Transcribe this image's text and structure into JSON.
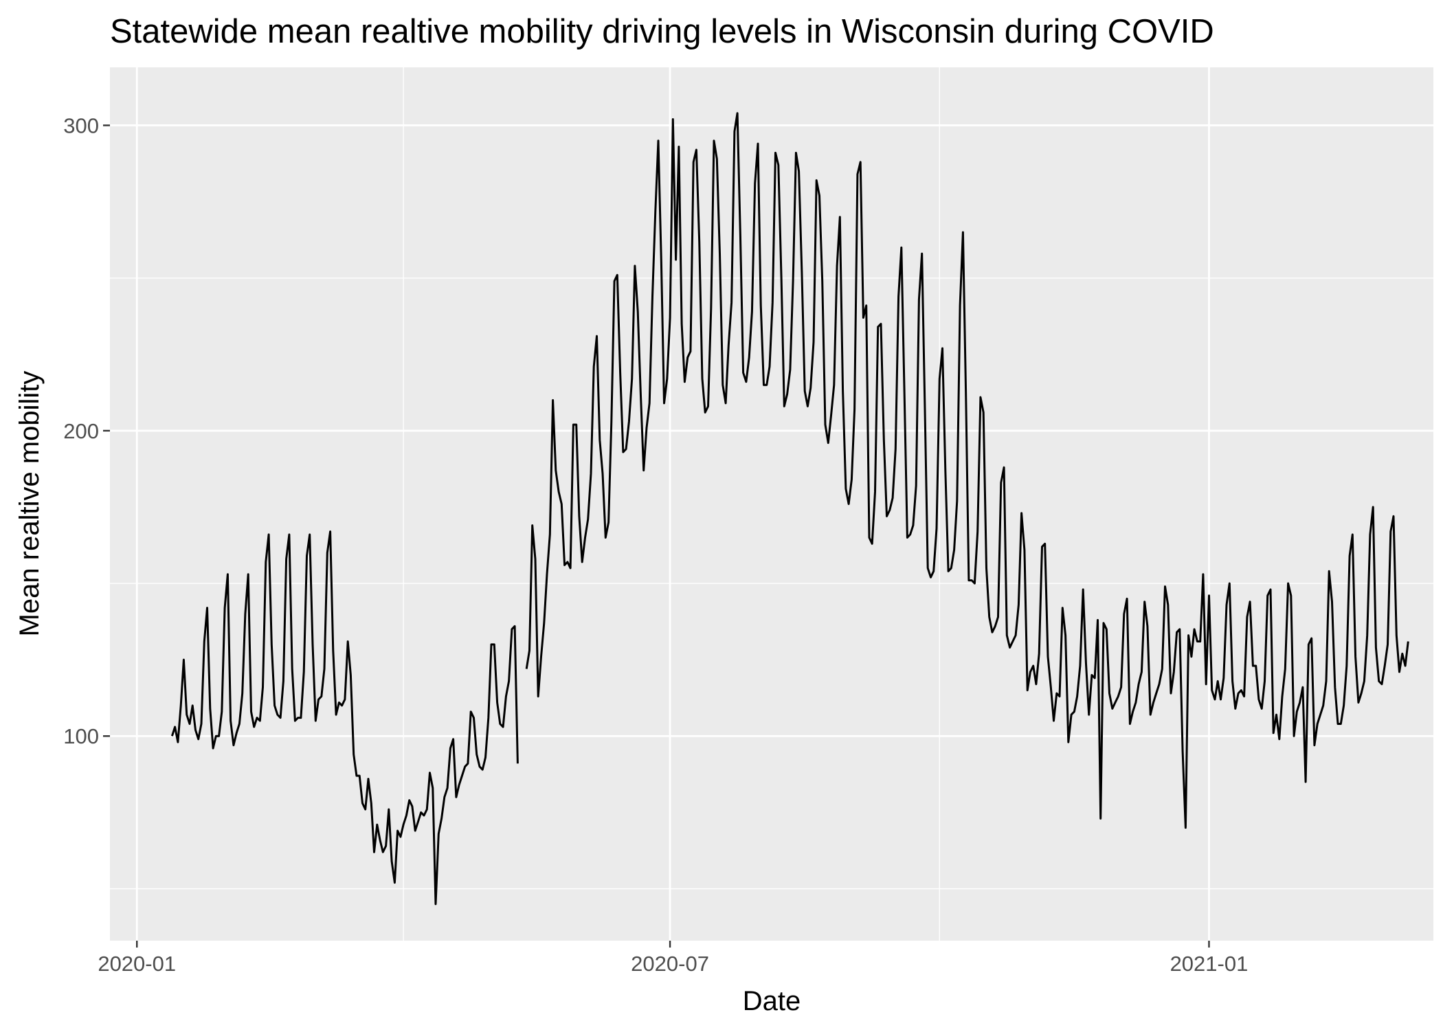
{
  "chart_data": {
    "type": "line",
    "title": "Statewide mean realtive mobility driving levels in Wisconsin during COVID",
    "xlabel": "Date",
    "ylabel": "Mean realtive mobility",
    "x_ticks": [
      {
        "label": "2020-01",
        "day": 0
      },
      {
        "label": "2020-07",
        "day": 182
      },
      {
        "label": "2021-01",
        "day": 366
      }
    ],
    "y_ticks": [
      {
        "label": "100",
        "value": 100
      },
      {
        "label": "200",
        "value": 200
      },
      {
        "label": "300",
        "value": 300
      }
    ],
    "xlim_days": [
      -9.2,
      442.6
    ],
    "ylim": [
      33,
      319
    ],
    "grid": true,
    "series": [
      {
        "name": "mean_relative_mobility",
        "color": "#000000",
        "start_date": "2020-01-13",
        "start_day": 12,
        "values": [
          100,
          103,
          98,
          110,
          125,
          107,
          104,
          110,
          102,
          99,
          104,
          131,
          142,
          109,
          96,
          100,
          100,
          108,
          142,
          153,
          105,
          97,
          101,
          104,
          114,
          140,
          153,
          108,
          103,
          106,
          105,
          116,
          157,
          166,
          130,
          110,
          107,
          106,
          118,
          158,
          166,
          122,
          105,
          106,
          106,
          121,
          159,
          166,
          130,
          105,
          112,
          113,
          122,
          160,
          167,
          128,
          107,
          111,
          110,
          112,
          131,
          120,
          94,
          87,
          87,
          78,
          76,
          86,
          78,
          62,
          71,
          66,
          62,
          64,
          76,
          59,
          52,
          69,
          67,
          71,
          74,
          79,
          77,
          69,
          72,
          75,
          74,
          76,
          88,
          83,
          45,
          68,
          73,
          80,
          83,
          96,
          99,
          80,
          84,
          87,
          90,
          91,
          108,
          106,
          94,
          90,
          89,
          93,
          106,
          130,
          130,
          111,
          104,
          103,
          113,
          118,
          135,
          136,
          91,
          null,
          null,
          122,
          128,
          169,
          158,
          113,
          126,
          137,
          153,
          166,
          210,
          187,
          180,
          176,
          156,
          157,
          155,
          202,
          202,
          172,
          157,
          165,
          171,
          186,
          221,
          231,
          197,
          186,
          165,
          170,
          203,
          249,
          251,
          219,
          193,
          194,
          203,
          217,
          254,
          239,
          212,
          187,
          201,
          209,
          244,
          272,
          295,
          256,
          209,
          217,
          237,
          302,
          256,
          293,
          235,
          216,
          224,
          226,
          288,
          292,
          262,
          217,
          206,
          208,
          240,
          295,
          289,
          258,
          215,
          209,
          228,
          242,
          298,
          304,
          264,
          219,
          216,
          224,
          239,
          281,
          294,
          241,
          215,
          215,
          221,
          242,
          291,
          287,
          250,
          208,
          212,
          220,
          249,
          291,
          285,
          252,
          213,
          208,
          214,
          229,
          282,
          277,
          249,
          202,
          196,
          205,
          215,
          254,
          270,
          213,
          181,
          176,
          184,
          207,
          284,
          288,
          237,
          241,
          165,
          163,
          180,
          234,
          235,
          197,
          172,
          174,
          178,
          194,
          244,
          260,
          213,
          165,
          166,
          169,
          182,
          243,
          258,
          207,
          155,
          152,
          154,
          168,
          217,
          227,
          187,
          154,
          155,
          161,
          177,
          241,
          265,
          213,
          151,
          151,
          150,
          167,
          211,
          206,
          155,
          139,
          134,
          136,
          139,
          183,
          188,
          133,
          129,
          131,
          133,
          143,
          173,
          161,
          115,
          121,
          123,
          117,
          127,
          162,
          163,
          126,
          116,
          105,
          114,
          113,
          142,
          133,
          98,
          107,
          108,
          113,
          123,
          148,
          124,
          107,
          120,
          119,
          138,
          73,
          137,
          135,
          114,
          109,
          111,
          113,
          116,
          140,
          145,
          104,
          108,
          111,
          117,
          121,
          144,
          136,
          107,
          111,
          114,
          117,
          122,
          149,
          143,
          114,
          121,
          134,
          135,
          95,
          70,
          133,
          126,
          135,
          131,
          131,
          153,
          117,
          146,
          115,
          112,
          118,
          112,
          119,
          143,
          150,
          118,
          109,
          114,
          115,
          113,
          139,
          144,
          123,
          123,
          112,
          109,
          118,
          146,
          148,
          101,
          107,
          99,
          113,
          122,
          150,
          146,
          100,
          108,
          111,
          116,
          85,
          130,
          132,
          97,
          104,
          107,
          110,
          118,
          154,
          144,
          116,
          104,
          104,
          110,
          123,
          159,
          166,
          126,
          111,
          114,
          118,
          133,
          166,
          175,
          129,
          118,
          117,
          123,
          130,
          167,
          172,
          133,
          121,
          127,
          123,
          131
        ]
      }
    ]
  }
}
